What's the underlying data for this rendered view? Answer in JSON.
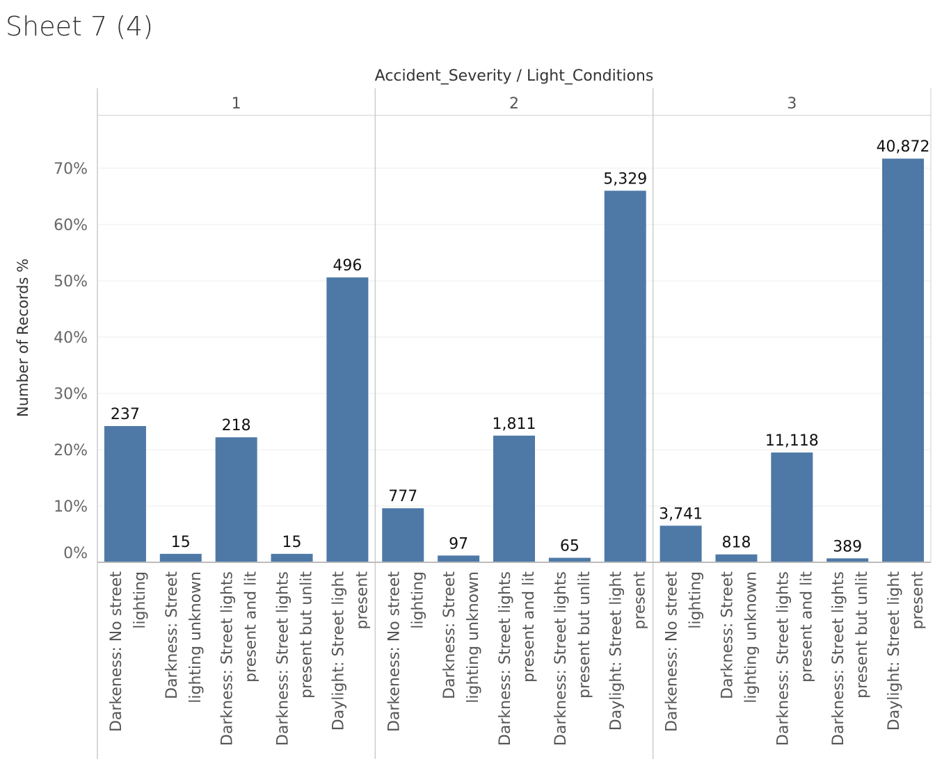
{
  "sheet": {
    "title": "Sheet 7 (4)"
  },
  "chart_data": {
    "type": "bar",
    "header": "Accident_Severity / Light_Conditions",
    "ylabel": "Number of Records %",
    "ylim": [
      0,
      80
    ],
    "yticks": [
      0,
      10,
      20,
      30,
      40,
      50,
      60,
      70
    ],
    "ytick_labels": [
      "0%",
      "10%",
      "20%",
      "30%",
      "40%",
      "50%",
      "60%",
      "70%"
    ],
    "grid": true,
    "bar_color": "#4e79a7",
    "categories": [
      "Darkeness: No street lighting",
      "Darkness: Street lighting unknown",
      "Darkness: Street lights present and lit",
      "Darkness: Street lights present but unlit",
      "Daylight: Street light present"
    ],
    "category_lines": [
      [
        "Darkeness: No street",
        "lighting"
      ],
      [
        "Darkness: Street",
        "lighting unknown"
      ],
      [
        "Darkness: Street lights",
        "present and lit"
      ],
      [
        "Darkness: Street lights",
        "present but unlit"
      ],
      [
        "Daylight: Street light",
        "present"
      ]
    ],
    "panels": [
      {
        "name": "1",
        "values": [
          24.2,
          1.5,
          22.2,
          1.5,
          50.6
        ],
        "labels": [
          "237",
          "15",
          "218",
          "15",
          "496"
        ]
      },
      {
        "name": "2",
        "values": [
          9.6,
          1.2,
          22.5,
          0.8,
          66.0
        ],
        "labels": [
          "777",
          "97",
          "1,811",
          "65",
          "5,329"
        ]
      },
      {
        "name": "3",
        "values": [
          6.5,
          1.4,
          19.5,
          0.7,
          71.7
        ],
        "labels": [
          "3,741",
          "818",
          "11,118",
          "389",
          "40,872"
        ]
      }
    ]
  }
}
